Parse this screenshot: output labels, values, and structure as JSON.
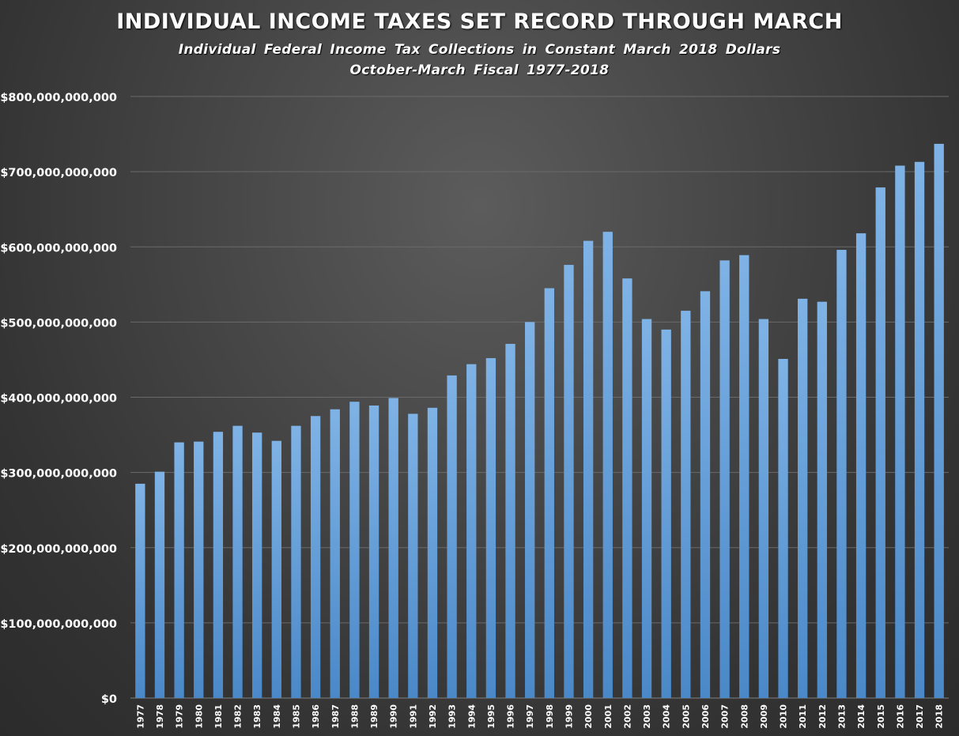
{
  "chart_data": {
    "type": "bar",
    "title": "INDIVIDUAL INCOME TAXES SET RECORD THROUGH MARCH",
    "subtitle": "Individual Federal Income Tax Collections in Constant March 2018 Dollars",
    "subtitle2": "October-March Fiscal 1977-2018",
    "xlabel": "",
    "ylabel": "",
    "ylim": [
      0,
      800000000000
    ],
    "yticks": [
      {
        "value": 0,
        "label": "$0"
      },
      {
        "value": 100000000000,
        "label": "$100,000,000,000"
      },
      {
        "value": 200000000000,
        "label": "$200,000,000,000"
      },
      {
        "value": 300000000000,
        "label": "$300,000,000,000"
      },
      {
        "value": 400000000000,
        "label": "$400,000,000,000"
      },
      {
        "value": 500000000000,
        "label": "$500,000,000,000"
      },
      {
        "value": 600000000000,
        "label": "$600,000,000,000"
      },
      {
        "value": 700000000000,
        "label": "$700,000,000,000"
      },
      {
        "value": 800000000000,
        "label": "$800,000,000,000"
      }
    ],
    "grid": true,
    "legend": "none",
    "bar_color": "#5b9bd5",
    "categories": [
      "1977",
      "1978",
      "1979",
      "1980",
      "1981",
      "1982",
      "1983",
      "1984",
      "1985",
      "1986",
      "1987",
      "1988",
      "1989",
      "1990",
      "1991",
      "1992",
      "1993",
      "1994",
      "1995",
      "1996",
      "1997",
      "1998",
      "1999",
      "2000",
      "2001",
      "2002",
      "2003",
      "2004",
      "2005",
      "2006",
      "2007",
      "2008",
      "2009",
      "2010",
      "2011",
      "2012",
      "2013",
      "2014",
      "2015",
      "2016",
      "2017",
      "2018"
    ],
    "values": [
      285000000000,
      301000000000,
      340000000000,
      341000000000,
      354000000000,
      362000000000,
      353000000000,
      342000000000,
      362000000000,
      375000000000,
      384000000000,
      394000000000,
      389000000000,
      399000000000,
      378000000000,
      386000000000,
      429000000000,
      444000000000,
      452000000000,
      471000000000,
      500000000000,
      545000000000,
      576000000000,
      608000000000,
      620000000000,
      558000000000,
      504000000000,
      490000000000,
      515000000000,
      541000000000,
      582000000000,
      589000000000,
      504000000000,
      451000000000,
      531000000000,
      527000000000,
      596000000000,
      618000000000,
      679000000000,
      708000000000,
      713000000000,
      737000000000
    ]
  }
}
